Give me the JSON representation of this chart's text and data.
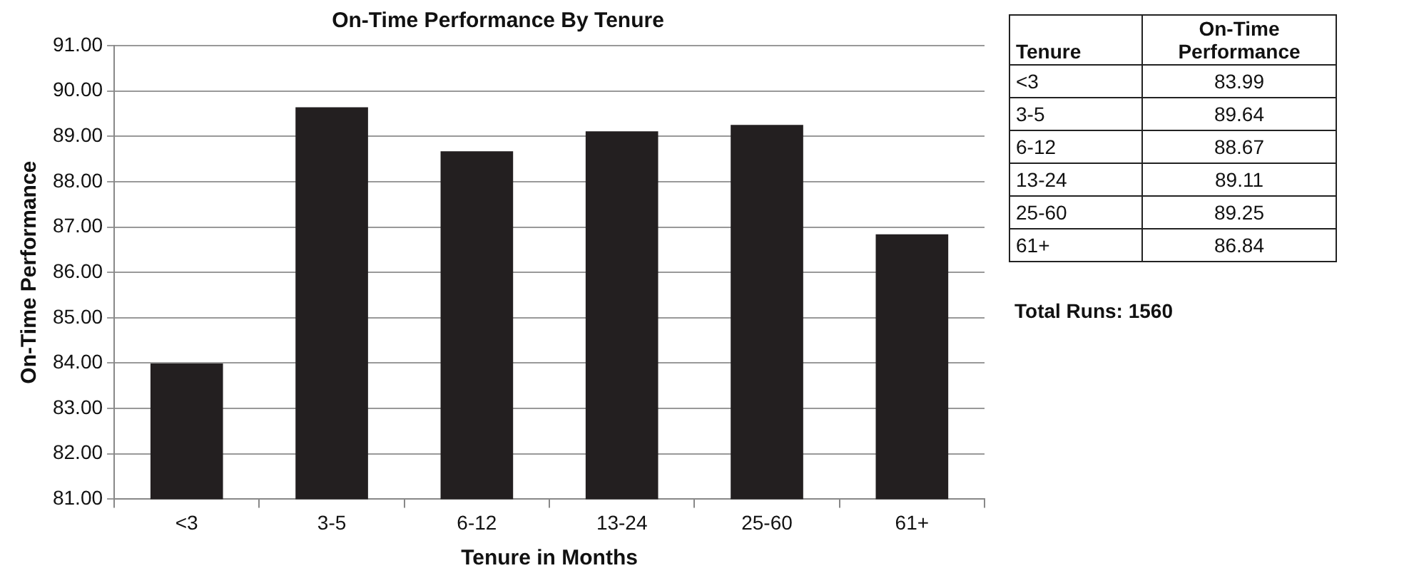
{
  "chart_data": [
    {
      "type": "bar",
      "title": "On-Time Performance By Tenure",
      "xlabel": "Tenure in Months",
      "ylabel": "On-Time Performance",
      "categories": [
        "<3",
        "3-5",
        "6-12",
        "13-24",
        "25-60",
        "61+"
      ],
      "values": [
        83.99,
        89.64,
        88.67,
        89.11,
        89.25,
        86.84
      ],
      "color": "#231f20",
      "ylim": [
        81,
        91
      ],
      "yticks": [
        {
          "value": 81,
          "label": "81.00"
        },
        {
          "value": 82,
          "label": "82.00"
        },
        {
          "value": 83,
          "label": "83.00"
        },
        {
          "value": 84,
          "label": "84.00"
        },
        {
          "value": 85,
          "label": "85.00"
        },
        {
          "value": 86,
          "label": "86.00"
        },
        {
          "value": 87,
          "label": "87.00"
        },
        {
          "value": 88,
          "label": "88.00"
        },
        {
          "value": 89,
          "label": "89.00"
        },
        {
          "value": 90,
          "label": "90.00"
        },
        {
          "value": 91,
          "label": "91.00"
        }
      ],
      "grid": "y"
    },
    {
      "type": "other",
      "xlabel": "Tenure",
      "ylabel": "On-Time Performance",
      "categories": [
        "<3",
        "3-5",
        "6-12",
        "13-24",
        "25-60",
        "61+"
      ],
      "values": [
        83.99,
        89.64,
        88.67,
        89.11,
        89.25,
        86.84
      ],
      "data_labels": true,
      "annotations": [
        "Total Runs: 1560"
      ]
    }
  ]
}
